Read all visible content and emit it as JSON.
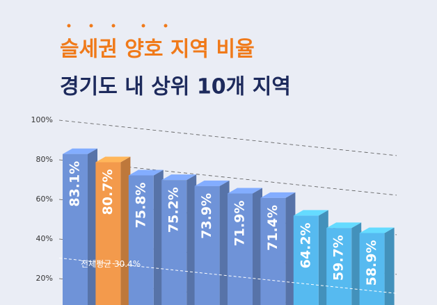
{
  "chart_data": {
    "type": "bar",
    "title": "슬세권 양호 지역 비율",
    "subtitle": "경기도 내 상위 10개 지역",
    "categories": [
      null,
      null,
      null,
      null,
      null,
      null,
      null,
      null,
      null,
      null
    ],
    "values": [
      83.1,
      80.7,
      75.8,
      75.2,
      73.9,
      71.9,
      71.4,
      64.2,
      59.7,
      58.9
    ],
    "value_labels": [
      "83.1%",
      "80.7%",
      "75.8%",
      "75.2%",
      "73.9%",
      "71.9%",
      "71.4%",
      "64.2%",
      "59.7%",
      "58.9%"
    ],
    "colors": [
      "#6f93d8",
      "#f39a4c",
      "#6f93d8",
      "#6f93d8",
      "#6f93d8",
      "#6f93d8",
      "#6f93d8",
      "#56baf0",
      "#56baf0",
      "#56baf0"
    ],
    "ylim": [
      0,
      100
    ],
    "yticks": [
      {
        "value": 20,
        "label": "20%"
      },
      {
        "value": 40,
        "label": "40%"
      },
      {
        "value": 60,
        "label": "60%"
      },
      {
        "value": 80,
        "label": "80%"
      },
      {
        "value": 100,
        "label": "100%"
      }
    ],
    "grid": true,
    "average": {
      "value": 30.4,
      "label": "전체평균 30.4%"
    }
  }
}
